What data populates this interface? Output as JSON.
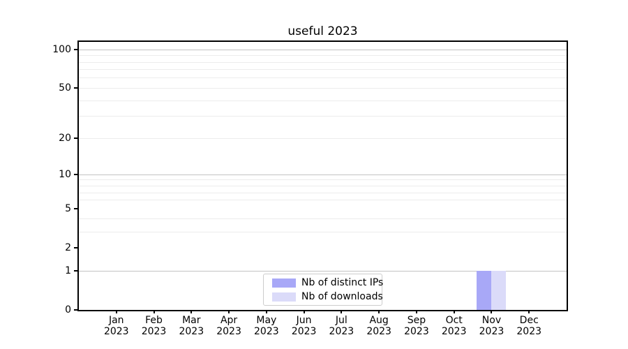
{
  "chart_data": {
    "type": "bar",
    "title": "useful 2023",
    "categories": [
      "Jan",
      "Feb",
      "Mar",
      "Apr",
      "May",
      "Jun",
      "Jul",
      "Aug",
      "Sep",
      "Oct",
      "Nov",
      "Dec"
    ],
    "category_year": "2023",
    "series": [
      {
        "name": "Nb of distinct IPs",
        "color": "#a8a8f7",
        "values": [
          0,
          0,
          0,
          0,
          0,
          0,
          0,
          0,
          0,
          0,
          1,
          0
        ]
      },
      {
        "name": "Nb of downloads",
        "color": "#dbdbf9",
        "values": [
          0,
          0,
          0,
          0,
          0,
          0,
          0,
          0,
          0,
          0,
          1,
          0
        ]
      }
    ],
    "yscale": "log1p",
    "ylim": [
      0,
      115
    ],
    "yticks": [
      0,
      1,
      2,
      5,
      10,
      20,
      50,
      100
    ],
    "major_gridlines": [
      1,
      10,
      100
    ],
    "minor_gridlines": [
      3,
      4,
      6,
      7,
      8,
      9,
      20,
      30,
      40,
      50,
      60,
      70,
      80,
      90
    ],
    "grid_on": true,
    "legend_position": "lower center",
    "colors": {
      "major_grid": "#c3c3c3",
      "minor_grid": "#ececec",
      "axis": "#000000",
      "text": "#000000",
      "background": "#ffffff"
    }
  }
}
